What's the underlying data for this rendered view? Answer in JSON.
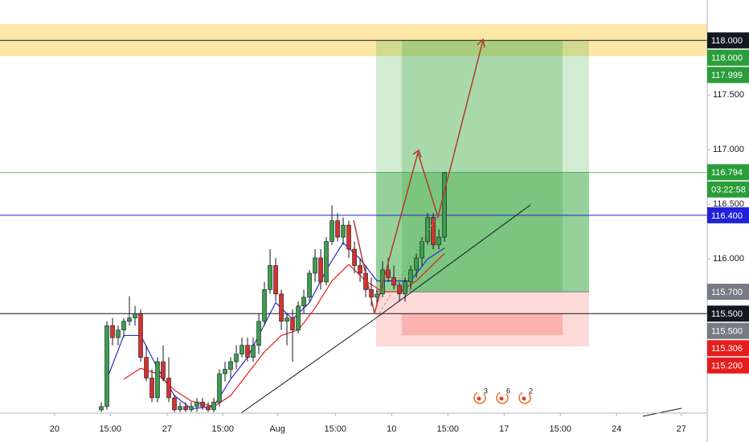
{
  "chart_data": {
    "type": "candlestick",
    "xlim": [
      0,
      125.7
    ],
    "ylim": [
      114.59,
      118.37
    ],
    "xticks": [
      {
        "value": 9.7,
        "label": "20"
      },
      {
        "value": 19.6,
        "label": "15:00"
      },
      {
        "value": 29.7,
        "label": "27"
      },
      {
        "value": 39.6,
        "label": "15:00"
      },
      {
        "value": 49.3,
        "label": "Aug"
      },
      {
        "value": 59.6,
        "label": "15:00"
      },
      {
        "value": 69.6,
        "label": "10"
      },
      {
        "value": 79.6,
        "label": "15:00"
      },
      {
        "value": 89.6,
        "label": "17"
      },
      {
        "value": 99.6,
        "label": "15:00"
      },
      {
        "value": 109.6,
        "label": "24"
      },
      {
        "value": 121.1,
        "label": "27"
      }
    ],
    "yticks": [
      {
        "value": 117.5,
        "label": "117.500"
      },
      {
        "value": 117,
        "label": "117.000"
      },
      {
        "value": 116.5,
        "label": "116.500"
      },
      {
        "value": 116,
        "label": "116.000"
      }
    ],
    "up_color": "#3d9d4c",
    "down_color": "#d5322f",
    "x": [
      18,
      19,
      20,
      21,
      22,
      23,
      24,
      25,
      26,
      27,
      28,
      29,
      30,
      31,
      32,
      33,
      34,
      35,
      36,
      37,
      38,
      39,
      40,
      41,
      42,
      43,
      44,
      45,
      46,
      47,
      48,
      49,
      50,
      51,
      52,
      53,
      54,
      55,
      56,
      57,
      58,
      59,
      60,
      61,
      62,
      63,
      64,
      65,
      66,
      67,
      68,
      69,
      70,
      71,
      72,
      73,
      74,
      75,
      76,
      77,
      78,
      79
    ],
    "open": [
      114.62,
      114.65,
      115.39,
      115.28,
      115.35,
      115.43,
      115.46,
      115.5,
      115.1,
      114.91,
      114.73,
      115.06,
      114.91,
      114.73,
      114.62,
      114.65,
      114.62,
      114.65,
      114.69,
      114.65,
      114.62,
      114.69,
      114.95,
      114.99,
      115.06,
      115.13,
      115.21,
      115.1,
      115.21,
      115.43,
      115.72,
      115.94,
      115.68,
      115.43,
      115.46,
      115.35,
      115.57,
      115.65,
      115.87,
      116.01,
      115.79,
      116.16,
      116.35,
      116.2,
      116.31,
      116.09,
      115.94,
      115.87,
      115.72,
      115.65,
      115.68,
      115.9,
      115.83,
      115.76,
      115.68,
      115.79,
      115.9,
      116.01,
      116.16,
      116.38,
      116.13,
      116.2
    ],
    "high": [
      114.69,
      115.43,
      115.46,
      115.39,
      115.46,
      115.66,
      115.57,
      115.54,
      115.21,
      114.99,
      115.1,
      115.21,
      115.1,
      114.76,
      114.69,
      114.69,
      114.69,
      114.73,
      114.73,
      114.69,
      114.73,
      114.99,
      115.06,
      115.1,
      115.21,
      115.28,
      115.28,
      115.28,
      115.5,
      115.79,
      116.09,
      116.01,
      115.72,
      115.5,
      115.54,
      115.61,
      115.72,
      115.9,
      116.09,
      116.09,
      116.2,
      116.49,
      116.42,
      116.38,
      116.35,
      116.16,
      116.01,
      115.94,
      115.83,
      115.72,
      115.98,
      116.01,
      115.94,
      115.79,
      115.83,
      115.94,
      116.05,
      116.2,
      116.42,
      116.42,
      116.27,
      116.79
    ],
    "low": [
      114.6,
      114.62,
      115.21,
      115.21,
      115.28,
      115.39,
      115.39,
      115.06,
      114.88,
      114.69,
      114.69,
      114.88,
      114.69,
      114.6,
      114.6,
      114.6,
      114.6,
      114.6,
      114.62,
      114.6,
      114.6,
      114.65,
      114.88,
      114.91,
      114.99,
      115.1,
      115.06,
      115.06,
      115.13,
      115.39,
      115.68,
      115.61,
      115.35,
      115.21,
      115.06,
      115.32,
      115.5,
      115.61,
      115.79,
      115.72,
      115.76,
      116.13,
      116.16,
      116.13,
      116.01,
      115.87,
      115.79,
      115.65,
      115.57,
      115.57,
      115.65,
      115.79,
      115.72,
      115.61,
      115.61,
      115.72,
      115.83,
      115.94,
      116.13,
      116.09,
      116.09,
      116.16
    ],
    "close": [
      114.65,
      115.39,
      115.28,
      115.35,
      115.43,
      115.46,
      115.5,
      115.1,
      114.91,
      114.73,
      115.06,
      114.91,
      114.73,
      114.62,
      114.65,
      114.62,
      114.65,
      114.69,
      114.65,
      114.62,
      114.69,
      114.95,
      114.99,
      115.06,
      115.13,
      115.21,
      115.1,
      115.21,
      115.43,
      115.72,
      115.94,
      115.68,
      115.43,
      115.46,
      115.35,
      115.57,
      115.65,
      115.87,
      116.01,
      115.79,
      116.16,
      116.35,
      116.2,
      116.31,
      116.09,
      115.94,
      115.87,
      115.72,
      115.65,
      115.68,
      115.9,
      115.83,
      115.76,
      115.68,
      115.79,
      115.9,
      116.01,
      116.16,
      116.38,
      116.13,
      116.2,
      116.79
    ],
    "overlays": [
      {
        "color": "#2b2bd0",
        "x": [
          19,
          22,
          25,
          28,
          31,
          34,
          38,
          41,
          44,
          47,
          49,
          52,
          55,
          58,
          61,
          64,
          67,
          70,
          73,
          76,
          79
        ],
        "values": [
          114.9,
          115.3,
          115.3,
          115.0,
          114.75,
          114.63,
          114.65,
          114.9,
          115.1,
          115.4,
          115.6,
          115.45,
          115.6,
          115.9,
          116.15,
          116.0,
          115.8,
          115.8,
          115.8,
          116.0,
          116.1
        ]
      },
      {
        "color": "#e0201b",
        "x": [
          22,
          25,
          28,
          31,
          34,
          38,
          41,
          44,
          47,
          50,
          53,
          56,
          59,
          62,
          65,
          68,
          71,
          74,
          77,
          79
        ],
        "values": [
          114.9,
          115.0,
          114.95,
          114.8,
          114.7,
          114.65,
          114.75,
          114.95,
          115.15,
          115.3,
          115.35,
          115.55,
          115.8,
          115.95,
          115.8,
          115.7,
          115.7,
          115.8,
          115.95,
          116.05
        ]
      }
    ],
    "badges": [
      {
        "label": "118.000",
        "value": 118,
        "color": "#131722",
        "line": true
      },
      {
        "label": "118.000",
        "value": 118,
        "color": "#2a9d3a"
      },
      {
        "label": "117.999",
        "value": 117.999,
        "color": "#2a9d3a"
      },
      {
        "label": "116.794",
        "value": 116.794,
        "color": "#2a9d3a",
        "line": true
      },
      {
        "label": "03:22:58",
        "color": "#2a9d3a"
      },
      {
        "label": "116.400",
        "value": 116.4,
        "color": "#2222d6",
        "line": true
      },
      {
        "label": "115.700",
        "value": 115.7,
        "color": "#787b86"
      },
      {
        "label": "115.500",
        "value": 115.5,
        "color": "#131722",
        "line": true
      },
      {
        "label": "115.500",
        "value": 115.5,
        "color": "#787b86"
      },
      {
        "label": "115.306",
        "value": 115.306,
        "color": "#e51d1d"
      },
      {
        "label": "115.200",
        "value": 115.2,
        "color": "#e51d1d"
      }
    ],
    "events": [
      3,
      6,
      2
    ]
  }
}
